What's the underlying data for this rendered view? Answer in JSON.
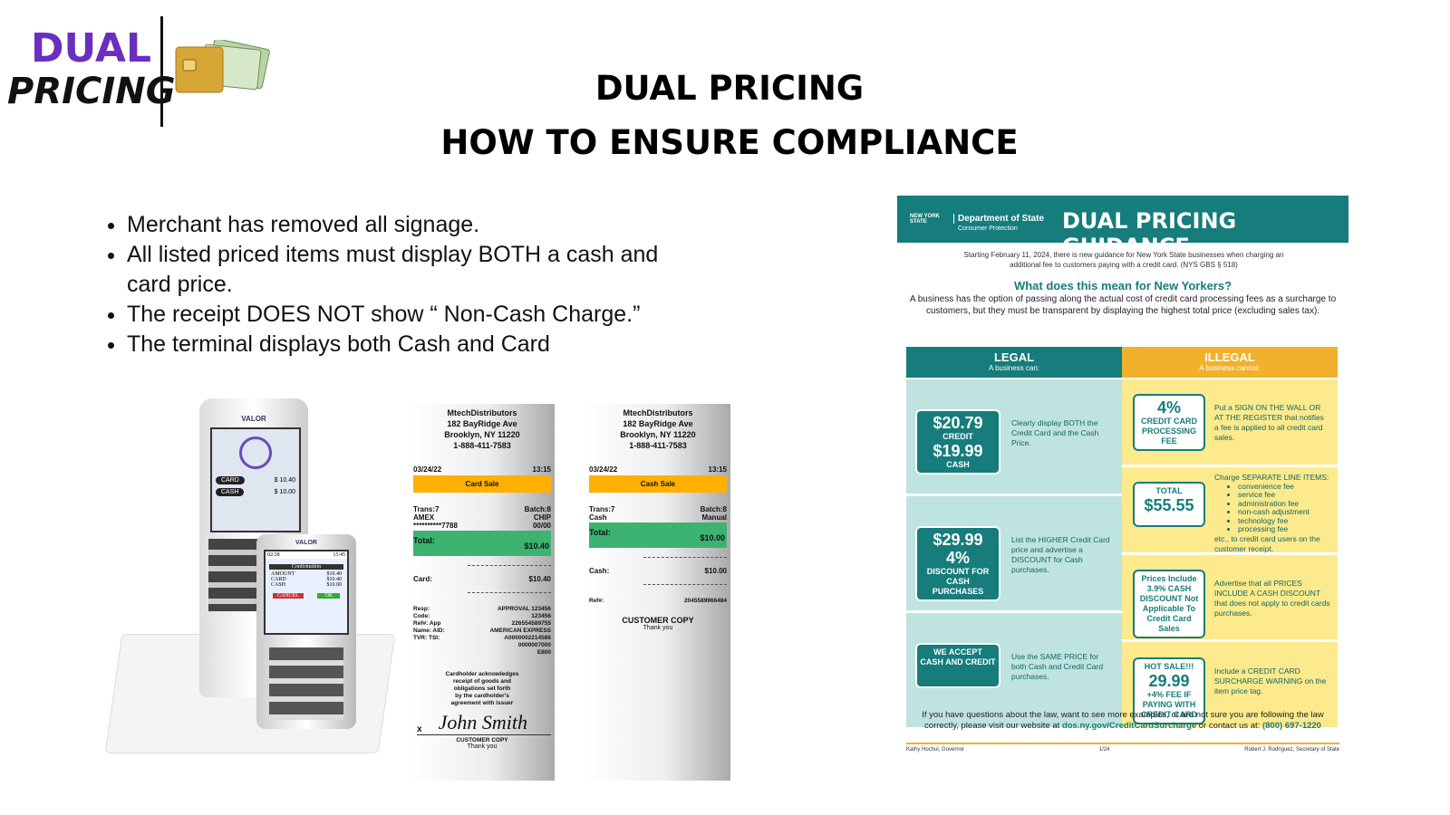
{
  "logo": {
    "top": "DUAL",
    "bottom": "PRICING"
  },
  "header": {
    "line1": "DUAL PRICING",
    "line2": "HOW TO ENSURE COMPLIANCE"
  },
  "bullets": [
    "Merchant has removed all signage.",
    "All listed priced items must display BOTH a cash and card price.",
    "The receipt DOES NOT show “ Non-Cash Charge.”",
    "The terminal displays both Cash and Card"
  ],
  "terminal": {
    "brand": "VALOR",
    "screen": [
      [
        "CARD",
        "$ 10.40"
      ],
      [
        "CASH",
        "$ 10.00"
      ]
    ],
    "pad": {
      "brand": "VALOR",
      "date": "02/28",
      "time": "15:45",
      "heading": "Confirmation",
      "rows": [
        [
          "AMOUNT",
          "$10.40"
        ],
        [
          "CARD",
          "$10.40"
        ],
        [
          "CASH",
          "$10.00"
        ]
      ],
      "cancel": "CANCEL",
      "ok": "OK"
    }
  },
  "receipts": [
    {
      "merchant": [
        "MtechDistributors",
        "182 BayRidge Ave",
        "Brooklyn, NY 11220",
        "1-888-411-7583"
      ],
      "date": "03/24/22",
      "time": "13:15",
      "sale": "Card Sale",
      "info": [
        [
          "Trans:7",
          "Batch:8"
        ],
        [
          "AMEX",
          "CHIP"
        ],
        [
          "**********7788",
          "00/00"
        ]
      ],
      "total": [
        "Total:",
        "$10.40"
      ],
      "tender": [
        "Card:",
        "$10.40"
      ],
      "details": [
        [
          "Resp:",
          "APPROVAL 123456"
        ],
        [
          "Code:",
          "123456"
        ],
        [
          "Ref#:   App",
          "226554589755"
        ],
        [
          "Name: AID:",
          "AMERICAN EXPRESS"
        ],
        [
          "TVR: TSI:",
          "A0000002214586"
        ],
        [
          "0000007000"
        ],
        [
          "E800"
        ]
      ],
      "footer": [
        "Cardholder acknowledges",
        "receipt of goods and",
        "obligations set forth",
        "by the cardholder's",
        "agreement with issuer"
      ],
      "mark": "x",
      "signature": "John Smith",
      "copy": [
        "CUSTOMER COPY",
        "Thank you"
      ]
    },
    {
      "merchant": [
        "MtechDistributors",
        "182 BayRidge Ave",
        "Brooklyn, NY 11220",
        "1-888-411-7583"
      ],
      "date": "03/24/22",
      "time": "13:15",
      "sale": "Cash Sale",
      "info": [
        [
          "Trans:7",
          "Batch:8"
        ],
        [
          "Cash",
          "Manual"
        ]
      ],
      "total": [
        "Total:",
        "$10.00"
      ],
      "tender": [
        "Cash:",
        "$10.00"
      ],
      "details": [
        [
          "Ref#:",
          "2045589966484"
        ]
      ],
      "copy": [
        "CUSTOMER COPY",
        "Thank you"
      ]
    }
  ],
  "guidance": {
    "state": "NEW YORK STATE",
    "dept": "Department of State",
    "sub": "Consumer Protection",
    "title": "DUAL PRICING GUIDANCE",
    "intro": "Starting February 11, 2024, there is new guidance for New York State businesses when charging an additional fee to customers paying with a credit card. (NYS GBS § 518)",
    "question": "What does this mean for New Yorkers?",
    "answer": "A business has the option of passing along the actual cost of credit card processing fees as a surcharge to customers, but they must be transparent by displaying the highest total price (excluding sales tax).",
    "legal": {
      "heading": "LEGAL",
      "sub": "A business can:",
      "items": [
        {
          "badge": [
            "$20.79",
            "CREDIT",
            "$19.99",
            "CASH"
          ],
          "text": "Clearly display BOTH the Credit Card and the Cash Price."
        },
        {
          "badge": [
            "$29.99",
            "4%",
            "DISCOUNT FOR CASH PURCHASES"
          ],
          "text": "List the HIGHER Credit Card price and advertise a DISCOUNT for Cash purchases."
        },
        {
          "badge": [
            "WE ACCEPT",
            "CASH AND CREDIT"
          ],
          "text": "Use the SAME PRICE for both Cash and Credit Card purchases."
        }
      ]
    },
    "illegal": {
      "heading": "ILLEGAL",
      "sub": "A business cannot:",
      "items": [
        {
          "badge": [
            "4%",
            "CREDIT CARD PROCESSING FEE"
          ],
          "text": "Put a SIGN ON THE WALL OR AT THE REGISTER that notifies a fee is applied to all credit card sales."
        },
        {
          "badge": [
            "TOTAL",
            "$55.55"
          ],
          "text": "Charge SEPARATE LINE ITEMS:",
          "list": [
            "convenience fee",
            "service fee",
            "administration fee",
            "non-cash adjustment",
            "technology fee",
            "processing fee"
          ],
          "after": "etc., to credit card users on the customer receipt."
        },
        {
          "badge": [
            "Prices Include 3.9% CASH DISCOUNT Not Applicable To Credit Card Sales"
          ],
          "text": "Advertise that all PRICES INCLUDE A CASH DISCOUNT that does not apply to credit cards purchases."
        },
        {
          "badge": [
            "HOT SALE!!!",
            "29.99",
            "+4% FEE IF PAYING WITH CREDIT CARD"
          ],
          "text": "Include a CREDIT CARD SURCHARGE WARNING on the item price tag."
        }
      ]
    },
    "footer": {
      "text": "If you have questions about the law, want to see more examples, or are not sure you are following the law correctly, please visit our website at",
      "link": "dos.ny.gov/CreditCardSurcharge",
      "mid": "or contact us at:",
      "phone": "(800) 697-1220"
    },
    "signers": [
      "Kathy Hochul, Governor",
      "1/24",
      "Robert J. Rodriguez, Secretary of State"
    ]
  }
}
